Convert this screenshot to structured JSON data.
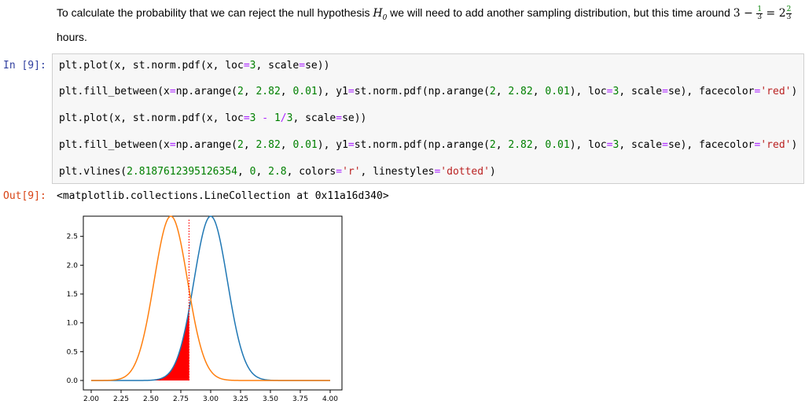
{
  "markdown": {
    "text_before": "To calculate the probability that we can reject the null hypothesis ",
    "h0_letter": "H",
    "h0_sub": "0",
    "text_middle": " we will need to add another sampling distribution, but this time around ",
    "three": "3",
    "minus": " − ",
    "frac1_num": "1",
    "frac1_den": "3",
    "equals": " = ",
    "two": "2",
    "frac2_num": "2",
    "frac2_den": "3",
    "text_after": "hours."
  },
  "input_prompt": "In [9]:",
  "output_prompt": "Out[9]:",
  "code_lines": [
    "plt.plot(x, st.norm.pdf(x, loc=3, scale=se))",
    "plt.fill_between(x=np.arange(2, 2.82, 0.01), y1=st.norm.pdf(np.arange(2, 2.82, 0.01), loc=3, scale=se), facecolor='red')",
    "plt.plot(x, st.norm.pdf(x, loc=3 - 1/3, scale=se))",
    "plt.fill_between(x=np.arange(2, 2.82, 0.01), y1=st.norm.pdf(np.arange(2, 2.82, 0.01), loc=3, scale=se), facecolor='red')",
    "plt.vlines(2.8187612395126354, 0, 2.8, colors='r', linestyles='dotted')"
  ],
  "output_text": "<matplotlib.collections.LineCollection at 0x11a16d340>",
  "chart_data": {
    "type": "line",
    "xlim": [
      2.0,
      4.0
    ],
    "ylim": [
      0.0,
      2.85
    ],
    "xticks": [
      "2.00",
      "2.25",
      "2.50",
      "2.75",
      "3.00",
      "3.25",
      "3.50",
      "3.75",
      "4.00"
    ],
    "xtick_values": [
      2.0,
      2.25,
      2.5,
      2.75,
      3.0,
      3.25,
      3.5,
      3.75,
      4.0
    ],
    "yticks": [
      "0.0",
      "0.5",
      "1.0",
      "1.5",
      "2.0",
      "2.5"
    ],
    "ytick_values": [
      0.0,
      0.5,
      1.0,
      1.5,
      2.0,
      2.5
    ],
    "series": [
      {
        "loc": 3.0,
        "scale": 0.14,
        "color": "#1f77b4"
      },
      {
        "loc": 2.6667,
        "scale": 0.14,
        "color": "#ff7f0e"
      }
    ],
    "fill": {
      "from": 2.0,
      "to": 2.82,
      "loc": 3.0,
      "scale": 0.14,
      "color": "#ff0000"
    },
    "vline": {
      "x": 2.8187612395126354,
      "ymin": 0,
      "ymax": 2.8,
      "color": "#ff0000",
      "style": "dotted"
    },
    "grid": false
  }
}
